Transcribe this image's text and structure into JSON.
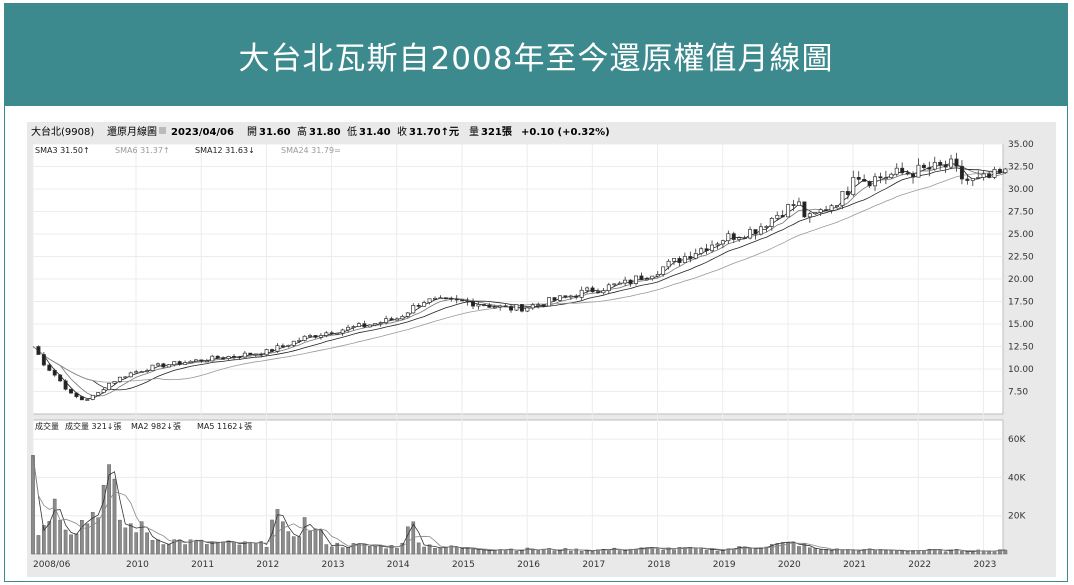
{
  "banner": {
    "title": "大台北瓦斯自2008年至今還原權值月線圖"
  },
  "header": {
    "stock": "大台北(9908)",
    "mode": "還原月線圖",
    "date": "2023/04/06",
    "open_label": "開",
    "open": "31.60",
    "high_label": "高",
    "high": "31.80",
    "low_label": "低",
    "low": "31.40",
    "close_label": "收",
    "close": "31.70↑元",
    "vol_label": "量",
    "vol": "321張",
    "change": "+0.10 (+0.32%)"
  },
  "sma_legend": [
    {
      "text": "SMA3 31.50↑",
      "color": "#222222"
    },
    {
      "text": "SMA6 31.37↑",
      "color": "#9a9a9a"
    },
    {
      "text": "SMA12 31.63↓",
      "color": "#222222"
    },
    {
      "text": "SMA24 31.79=",
      "color": "#9a9a9a"
    }
  ],
  "vol_legend": [
    {
      "text": "成交量",
      "color": "#222222"
    },
    {
      "text": "成交量 321↓張",
      "color": "#222222"
    },
    {
      "text": "MA2 982↓張",
      "color": "#222222"
    },
    {
      "text": "MA5 1162↓張",
      "color": "#222222"
    }
  ],
  "colors": {
    "banner": "#3d8a8e",
    "up": "#ffffff",
    "down": "#222222",
    "vol_bar": "#8c8c8c"
  },
  "chart_data": {
    "type": "candlestick",
    "price_axis": {
      "ticks": [
        "35.00",
        "32.50",
        "30.00",
        "27.50",
        "25.00",
        "22.50",
        "20.00",
        "17.50",
        "15.00",
        "12.50",
        "10.00",
        "7.50"
      ],
      "ylim": [
        5,
        35
      ]
    },
    "volume_axis": {
      "ticks": [
        "60K",
        "40K",
        "20K"
      ],
      "ylim": [
        0,
        70000
      ]
    },
    "x_ticks": [
      "2008/06",
      "2010",
      "2011",
      "2012",
      "2013",
      "2014",
      "2015",
      "2016",
      "2017",
      "2018",
      "2019",
      "2020",
      "2021",
      "2022",
      "2023"
    ],
    "x_tick_years": [
      2008.42,
      2010,
      2011,
      2012,
      2013,
      2014,
      2015,
      2016,
      2017,
      2018,
      2019,
      2020,
      2021,
      2022,
      2023
    ],
    "x_range": [
      2008.42,
      2023.3
    ],
    "price_anchors": [
      [
        2008.42,
        12.5
      ],
      [
        2008.6,
        10.5
      ],
      [
        2008.8,
        9.0
      ],
      [
        2009.0,
        7.2
      ],
      [
        2009.2,
        6.5
      ],
      [
        2009.4,
        7.2
      ],
      [
        2009.6,
        8.5
      ],
      [
        2009.9,
        9.5
      ],
      [
        2010.3,
        10.3
      ],
      [
        2011.0,
        11.0
      ],
      [
        2012.0,
        11.9
      ],
      [
        2012.6,
        13.5
      ],
      [
        2013.0,
        14.2
      ],
      [
        2013.5,
        14.8
      ],
      [
        2014.0,
        15.6
      ],
      [
        2014.4,
        17.6
      ],
      [
        2014.7,
        17.5
      ],
      [
        2015.2,
        17.4
      ],
      [
        2015.7,
        16.7
      ],
      [
        2016.0,
        16.9
      ],
      [
        2016.5,
        17.8
      ],
      [
        2017.0,
        18.8
      ],
      [
        2017.5,
        19.5
      ],
      [
        2018.0,
        21.0
      ],
      [
        2018.5,
        22.8
      ],
      [
        2019.0,
        24.5
      ],
      [
        2019.5,
        25.5
      ],
      [
        2019.9,
        27.5
      ],
      [
        2020.15,
        28.5
      ],
      [
        2020.3,
        26.5
      ],
      [
        2020.6,
        28.0
      ],
      [
        2020.9,
        29.5
      ],
      [
        2021.0,
        32.0
      ],
      [
        2021.2,
        31.0
      ],
      [
        2021.6,
        31.6
      ],
      [
        2022.0,
        32.0
      ],
      [
        2022.5,
        32.6
      ],
      [
        2022.7,
        31.0
      ],
      [
        2022.9,
        30.8
      ],
      [
        2023.3,
        31.7
      ]
    ],
    "volume_anchors": [
      [
        2008.42,
        65000
      ],
      [
        2008.5,
        10000
      ],
      [
        2008.7,
        28000
      ],
      [
        2008.85,
        24000
      ],
      [
        2009.0,
        14000
      ],
      [
        2009.3,
        20000
      ],
      [
        2009.5,
        35000
      ],
      [
        2009.6,
        40000
      ],
      [
        2009.8,
        14000
      ],
      [
        2010.0,
        16000
      ],
      [
        2010.3,
        8000
      ],
      [
        2011.0,
        6000
      ],
      [
        2012.0,
        5000
      ],
      [
        2012.1,
        30000
      ],
      [
        2012.3,
        8000
      ],
      [
        2012.6,
        17000
      ],
      [
        2013.0,
        5000
      ],
      [
        2014.0,
        4000
      ],
      [
        2014.25,
        16000
      ],
      [
        2014.4,
        5000
      ],
      [
        2015.0,
        3000
      ],
      [
        2016.0,
        2500
      ],
      [
        2017.0,
        2200
      ],
      [
        2018.0,
        3000
      ],
      [
        2019.0,
        2500
      ],
      [
        2020.15,
        6000
      ],
      [
        2020.4,
        2500
      ],
      [
        2021.0,
        2200
      ],
      [
        2022.0,
        2000
      ],
      [
        2023.3,
        1800
      ]
    ]
  }
}
